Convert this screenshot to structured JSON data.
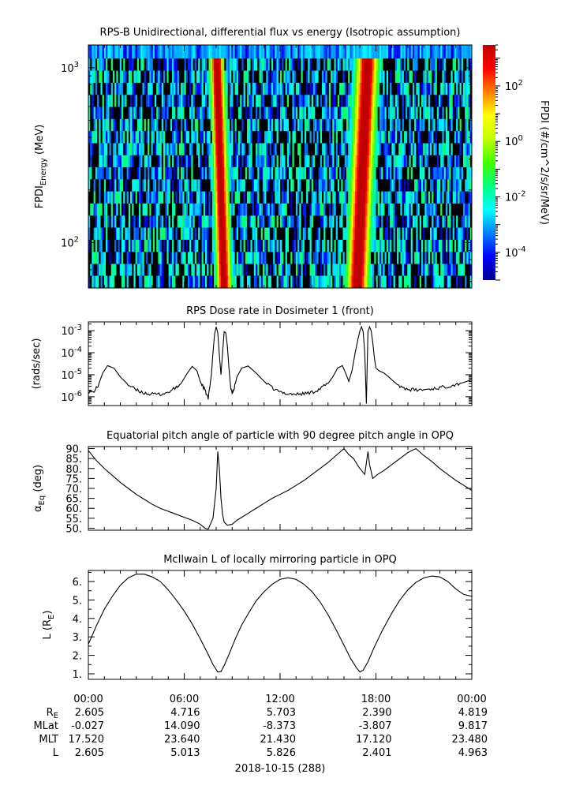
{
  "chart_data": [
    {
      "type": "heatmap",
      "title": "RPS-B  Unidirectional, differential flux vs energy (Isotropic assumption)",
      "ylabel_main": "FPDI",
      "ylabel_sub": "Energy",
      "ylabel_unit": "(MeV)",
      "yscale": "log",
      "ylim": [
        55,
        1350
      ],
      "yticks": [
        {
          "value": 100,
          "base": "10",
          "exp": "2"
        },
        {
          "value": 1000,
          "base": "10",
          "exp": "3"
        }
      ],
      "energy_bands": [
        60,
        70,
        82,
        96,
        113,
        132,
        155,
        182,
        213,
        250,
        293,
        343,
        402,
        472,
        553,
        649,
        760,
        892,
        1046,
        1227
      ],
      "xlim_hours": [
        0,
        24
      ],
      "bands": [
        {
          "center_hours": 8.3,
          "fwhm_hours": 0.8,
          "drift_hours_per_decade": -0.35,
          "peak_log_flux": 3.0
        },
        {
          "center_hours": 17.1,
          "fwhm_hours": 1.2,
          "drift_hours_per_decade": 0.5,
          "peak_log_flux": 3.0
        }
      ],
      "background_log_flux_range": [
        -4.5,
        -1.2
      ],
      "colorbar": {
        "label": "FPDI (#/cm^2/s/sr/MeV)",
        "scale": "log",
        "range": [
          1e-05,
          3000
        ],
        "ticks": [
          {
            "value": 0.0001,
            "base": "10",
            "exp": "-4"
          },
          {
            "value": 0.01,
            "base": "10",
            "exp": "-2"
          },
          {
            "value": 1,
            "base": "10",
            "exp": "0"
          },
          {
            "value": 100,
            "base": "10",
            "exp": "2"
          }
        ],
        "colors": [
          "#00008f",
          "#0000ff",
          "#0080ff",
          "#00ffff",
          "#00ff80",
          "#40ff00",
          "#c0ff00",
          "#ffff00",
          "#ff8000",
          "#ff0000",
          "#c00000"
        ]
      }
    },
    {
      "type": "line",
      "title": "RPS  Dose rate in Dosimeter 1 (front)",
      "ylabel": "(rads/sec)",
      "yscale": "log",
      "ylim": [
        4e-07,
        0.0025
      ],
      "yticks": [
        {
          "value": 1e-06,
          "base": "10",
          "exp": "-6"
        },
        {
          "value": 1e-05,
          "base": "10",
          "exp": "-5"
        },
        {
          "value": 0.0001,
          "base": "10",
          "exp": "-4"
        },
        {
          "value": 0.001,
          "base": "10",
          "exp": "-3"
        }
      ],
      "x_hours": [
        0.0,
        0.3,
        0.6,
        0.9,
        1.2,
        1.6,
        2.0,
        2.5,
        3.0,
        3.5,
        4.0,
        4.5,
        5.0,
        5.5,
        5.8,
        6.2,
        6.5,
        6.8,
        7.0,
        7.3,
        7.5,
        7.7,
        7.8,
        7.9,
        8.0,
        8.1,
        8.2,
        8.3,
        8.4,
        8.5,
        8.6,
        8.7,
        8.8,
        8.9,
        9.0,
        9.1,
        9.3,
        9.6,
        10.0,
        10.5,
        11.0,
        11.5,
        12.0,
        12.5,
        13.0,
        13.5,
        14.0,
        14.5,
        15.0,
        15.3,
        15.6,
        15.9,
        16.1,
        16.3,
        16.5,
        16.7,
        16.9,
        17.0,
        17.1,
        17.2,
        17.3,
        17.4,
        17.5,
        17.6,
        17.7,
        17.8,
        17.9,
        18.0,
        18.2,
        18.5,
        18.8,
        19.1,
        19.5,
        20.0,
        20.5,
        21.0,
        21.5,
        22.0,
        22.5,
        23.0,
        23.5,
        24.0
      ],
      "y": [
        1.8e-06,
        1.6e-06,
        3e-06,
        1.2e-05,
        2.6e-05,
        2e-05,
        8e-06,
        3.5e-06,
        2e-06,
        1.5e-06,
        1.3e-06,
        1.3e-06,
        1.6e-06,
        2.6e-06,
        4e-06,
        1.2e-05,
        2.4e-05,
        1.5e-05,
        5e-06,
        2e-06,
        8e-07,
        1e-05,
        0.0001,
        0.0007,
        0.0015,
        0.0008,
        8e-05,
        1e-05,
        0.0001,
        0.0009,
        0.0008,
        0.0002,
        2e-05,
        3e-06,
        1.5e-06,
        2e-06,
        8e-06,
        2e-05,
        2.5e-05,
        1.2e-05,
        5e-06,
        2.5e-06,
        1.6e-06,
        1.4e-06,
        1.3e-06,
        1.4e-06,
        1.6e-06,
        2.3e-06,
        4e-06,
        8e-06,
        2e-05,
        2.6e-05,
        1.2e-05,
        5e-06,
        1.5e-05,
        0.0001,
        0.0005,
        0.001,
        0.0015,
        0.0009,
        0.0001,
        5e-07,
        0.0009,
        0.0015,
        0.001,
        0.0003,
        6e-05,
        2e-05,
        1.5e-05,
        1.2e-05,
        8e-06,
        5e-06,
        3e-06,
        2.2e-06,
        2e-06,
        2.1e-06,
        2.3e-06,
        2.6e-06,
        3e-06,
        3.6e-06,
        4.5e-06,
        6e-06
      ]
    },
    {
      "type": "line",
      "title": "Equatorial pitch angle of particle with 90 degree pitch angle in OPQ",
      "ylabel_main": "α",
      "ylabel_sub": "Eq",
      "ylabel_unit": "(deg)",
      "ylim": [
        49,
        91
      ],
      "yticks": [
        "50.",
        "55.",
        "60.",
        "65.",
        "70.",
        "75.",
        "80.",
        "85.",
        "90."
      ],
      "x_hours": [
        0.0,
        0.5,
        1.0,
        1.5,
        2.0,
        2.5,
        3.0,
        3.5,
        4.0,
        4.5,
        5.0,
        5.5,
        6.0,
        6.5,
        7.0,
        7.3,
        7.5,
        7.8,
        8.0,
        8.1,
        8.2,
        8.3,
        8.4,
        8.5,
        8.7,
        9.0,
        9.3,
        9.6,
        10.0,
        10.5,
        11.0,
        11.5,
        12.0,
        12.5,
        13.0,
        13.5,
        14.0,
        14.5,
        15.0,
        15.5,
        16.0,
        16.3,
        16.6,
        16.9,
        17.1,
        17.3,
        17.5,
        17.6,
        17.8,
        18.1,
        18.5,
        19.0,
        19.5,
        20.0,
        20.5,
        21.0,
        21.5,
        22.0,
        22.5,
        23.0,
        23.5,
        24.0
      ],
      "y": [
        89.0,
        84.0,
        80.0,
        76.5,
        73.0,
        70.0,
        67.0,
        64.5,
        62.0,
        60.0,
        58.5,
        57.0,
        55.5,
        54.0,
        52.0,
        50.0,
        49.5,
        55.0,
        70.0,
        88.5,
        80.0,
        65.0,
        57.0,
        53.0,
        51.5,
        52.0,
        54.0,
        55.5,
        57.5,
        60.0,
        62.5,
        65.0,
        67.0,
        69.0,
        71.5,
        74.0,
        77.0,
        80.0,
        83.0,
        86.5,
        90.0,
        87.0,
        85.0,
        81.0,
        79.0,
        77.0,
        88.5,
        82.0,
        75.0,
        77.0,
        79.0,
        82.0,
        85.0,
        88.0,
        90.0,
        86.5,
        83.5,
        80.0,
        77.0,
        74.0,
        71.5,
        69.0
      ]
    },
    {
      "type": "line",
      "title": "McIlwain L of locally mirroring particle in OPQ",
      "ylabel_main": "L (R",
      "ylabel_sub": "E",
      "ylabel_unit": ")",
      "ylim": [
        0.7,
        6.6
      ],
      "yticks": [
        "1.",
        "2.",
        "3.",
        "4.",
        "5.",
        "6."
      ],
      "x_hours": [
        0.0,
        0.5,
        1.0,
        1.5,
        2.0,
        2.5,
        3.0,
        3.5,
        4.0,
        4.5,
        5.0,
        5.5,
        6.0,
        6.5,
        7.0,
        7.5,
        7.8,
        8.1,
        8.3,
        8.5,
        8.8,
        9.2,
        9.6,
        10.0,
        10.5,
        11.0,
        11.5,
        12.0,
        12.5,
        13.0,
        13.5,
        14.0,
        14.5,
        15.0,
        15.5,
        16.0,
        16.4,
        16.8,
        17.0,
        17.2,
        17.5,
        17.9,
        18.4,
        19.0,
        19.5,
        20.0,
        20.5,
        21.0,
        21.5,
        22.0,
        22.5,
        23.0,
        23.5,
        24.0
      ],
      "y": [
        2.605,
        3.6,
        4.5,
        5.2,
        5.8,
        6.2,
        6.4,
        6.4,
        6.25,
        6.0,
        5.55,
        5.0,
        4.4,
        3.7,
        2.9,
        2.05,
        1.5,
        1.1,
        1.12,
        1.45,
        2.05,
        2.9,
        3.65,
        4.25,
        4.95,
        5.45,
        5.85,
        6.12,
        6.2,
        6.12,
        5.85,
        5.45,
        4.9,
        4.2,
        3.4,
        2.55,
        1.85,
        1.3,
        1.1,
        1.2,
        1.65,
        2.45,
        3.35,
        4.3,
        5.0,
        5.55,
        5.95,
        6.2,
        6.3,
        6.25,
        6.0,
        5.6,
        5.3,
        5.2
      ]
    }
  ],
  "x_axis": {
    "tick_labels": [
      "00:00",
      "06:00",
      "12:00",
      "18:00",
      "00:00"
    ],
    "ephemeris_rows": [
      {
        "label_main": "R",
        "label_sub": "E",
        "values": [
          "2.605",
          "4.716",
          "5.703",
          "2.390",
          "4.819"
        ]
      },
      {
        "label_main": "MLat",
        "label_sub": "",
        "values": [
          "-0.027",
          "14.090",
          "-8.373",
          "-3.807",
          "9.817"
        ]
      },
      {
        "label_main": "MLT",
        "label_sub": "",
        "values": [
          "17.520",
          "23.640",
          "21.430",
          "17.120",
          "23.480"
        ]
      },
      {
        "label_main": "L",
        "label_sub": "",
        "values": [
          "2.605",
          "5.013",
          "5.826",
          "2.401",
          "4.963"
        ]
      }
    ],
    "date_label": "2018-10-15 (288)"
  }
}
